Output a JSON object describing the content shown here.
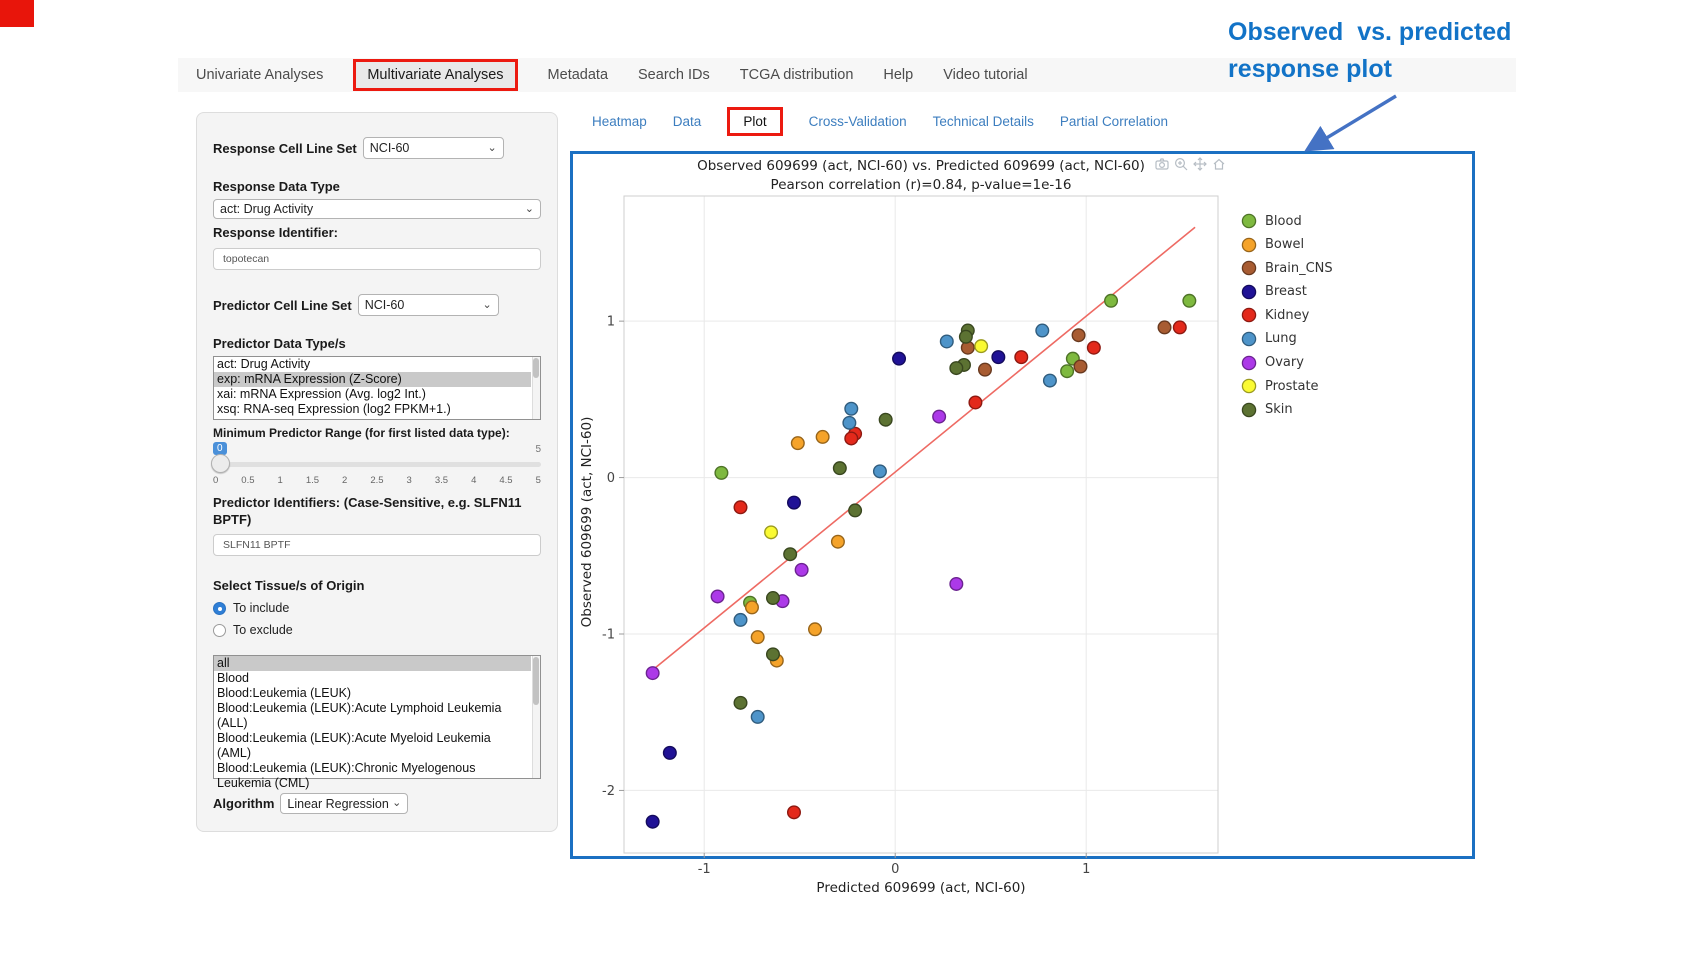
{
  "page": {
    "corner_accent_color": "#e8150b",
    "highlight_red": "#ec1a10",
    "panel_border_blue": "#1b70c2",
    "link_blue": "#3d7ebf"
  },
  "nav": {
    "items": [
      {
        "label": "Univariate Analyses",
        "active": false
      },
      {
        "label": "Multivariate Analyses",
        "active": true
      },
      {
        "label": "Metadata",
        "active": false
      },
      {
        "label": "Search IDs",
        "active": false
      },
      {
        "label": "TCGA distribution",
        "active": false
      },
      {
        "label": "Help",
        "active": false
      },
      {
        "label": "Video tutorial",
        "active": false
      }
    ]
  },
  "sidebar": {
    "response_cell_line_set": {
      "label": "Response Cell Line Set",
      "value": "NCI-60"
    },
    "response_data_type": {
      "label": "Response Data Type",
      "value": "act: Drug Activity"
    },
    "response_identifier": {
      "label": "Response Identifier:",
      "value": "topotecan"
    },
    "predictor_cell_line_set": {
      "label": "Predictor Cell Line Set",
      "value": "NCI-60"
    },
    "predictor_data_types": {
      "label": "Predictor Data Type/s",
      "options": [
        "act: Drug Activity",
        "exp: mRNA Expression (Z-Score)",
        "xai: mRNA Expression (Avg. log2 Int.)",
        "xsq: RNA-seq Expression (log2 FPKM+1.)"
      ],
      "selected": "exp: mRNA Expression (Z-Score)"
    },
    "min_predictor_range": {
      "label": "Minimum Predictor Range (for first listed data type):",
      "value": "0",
      "max_label": "5",
      "ticks": [
        "0",
        "0.5",
        "1",
        "1.5",
        "2",
        "2.5",
        "3",
        "3.5",
        "4",
        "4.5",
        "5"
      ]
    },
    "predictor_identifiers": {
      "label": "Predictor Identifiers: (Case-Sensitive, e.g. SLFN11 BPTF)",
      "value": "SLFN11 BPTF"
    },
    "tissue_origin": {
      "label": "Select Tissue/s of Origin",
      "radios": [
        {
          "label": "To include",
          "selected": true
        },
        {
          "label": "To exclude",
          "selected": false
        }
      ],
      "options": [
        "all",
        "Blood",
        "Blood:Leukemia (LEUK)",
        "Blood:Leukemia (LEUK):Acute Lymphoid Leukemia (ALL)",
        "Blood:Leukemia (LEUK):Acute Myeloid Leukemia (AML)",
        "Blood:Leukemia (LEUK):Chronic Myelogenous Leukemia (CML)"
      ],
      "selected": "all"
    },
    "algorithm": {
      "label": "Algorithm",
      "value": "Linear Regression"
    }
  },
  "plot_tabs": {
    "items": [
      {
        "label": "Heatmap",
        "active": false
      },
      {
        "label": "Data",
        "active": false
      },
      {
        "label": "Plot",
        "active": true
      },
      {
        "label": "Cross-Validation",
        "active": false
      },
      {
        "label": "Technical Details",
        "active": false
      },
      {
        "label": "Partial Correlation",
        "active": false
      }
    ]
  },
  "annotation": {
    "line1": "Observed  vs. predicted",
    "line2": "response plot",
    "color": "#1273c7"
  },
  "modebar": {
    "icons": [
      "camera-icon",
      "zoom-in-icon",
      "pan-icon",
      "reset-axes-icon"
    ]
  },
  "chart_data": {
    "type": "scatter",
    "title_line1": "Observed 609699 (act, NCI-60) vs. Predicted 609699 (act, NCI-60)",
    "title_line2": "Pearson correlation (r)=0.84, p-value=1e-16",
    "xlabel": "Predicted 609699 (act, NCI-60)",
    "ylabel": "Observed 609699 (act, NCI-60)",
    "xlim": [
      -1.42,
      1.69
    ],
    "ylim": [
      -2.4,
      1.8
    ],
    "xticks": [
      -1,
      0,
      1
    ],
    "yticks": [
      -2,
      -1,
      0,
      1
    ],
    "grid": true,
    "legend_position": "right",
    "regression_line": {
      "x1": -1.3,
      "y1": -1.26,
      "x2": 1.57,
      "y2": 1.6,
      "color": "#ee6a63"
    },
    "series": [
      {
        "name": "Blood",
        "color": "#7eb93f",
        "points": [
          [
            1.13,
            1.13
          ],
          [
            1.54,
            1.13
          ],
          [
            0.93,
            0.76
          ],
          [
            0.9,
            0.68
          ],
          [
            -0.91,
            0.03
          ],
          [
            -0.76,
            -0.8
          ]
        ]
      },
      {
        "name": "Bowel",
        "color": "#f5a32a",
        "points": [
          [
            -0.51,
            0.22
          ],
          [
            -0.38,
            0.26
          ],
          [
            -0.3,
            -0.41
          ],
          [
            -0.75,
            -0.83
          ],
          [
            -0.42,
            -0.97
          ],
          [
            -0.72,
            -1.02
          ],
          [
            -0.62,
            -1.17
          ]
        ]
      },
      {
        "name": "Brain_CNS",
        "color": "#a85c32",
        "points": [
          [
            0.38,
            0.83
          ],
          [
            0.47,
            0.69
          ],
          [
            0.96,
            0.91
          ],
          [
            0.97,
            0.71
          ],
          [
            1.41,
            0.96
          ]
        ]
      },
      {
        "name": "Breast",
        "color": "#201296",
        "points": [
          [
            0.54,
            0.77
          ],
          [
            0.02,
            0.76
          ],
          [
            -0.53,
            -0.16
          ],
          [
            -1.18,
            -1.76
          ],
          [
            -1.27,
            -2.2
          ]
        ]
      },
      {
        "name": "Kidney",
        "color": "#e3291b",
        "points": [
          [
            0.66,
            0.77
          ],
          [
            1.04,
            0.83
          ],
          [
            1.49,
            0.96
          ],
          [
            0.42,
            0.48
          ],
          [
            -0.21,
            0.28
          ],
          [
            -0.23,
            0.25
          ],
          [
            -0.81,
            -0.19
          ],
          [
            -0.53,
            -2.14
          ]
        ]
      },
      {
        "name": "Lung",
        "color": "#4e94c9",
        "points": [
          [
            0.27,
            0.87
          ],
          [
            0.77,
            0.94
          ],
          [
            0.81,
            0.62
          ],
          [
            -0.23,
            0.44
          ],
          [
            -0.24,
            0.35
          ],
          [
            -0.08,
            0.04
          ],
          [
            -0.81,
            -0.91
          ],
          [
            -0.72,
            -1.53
          ]
        ]
      },
      {
        "name": "Ovary",
        "color": "#ac39e8",
        "points": [
          [
            0.23,
            0.39
          ],
          [
            -0.49,
            -0.59
          ],
          [
            0.32,
            -0.68
          ],
          [
            -0.93,
            -0.76
          ],
          [
            -0.59,
            -0.79
          ],
          [
            -1.27,
            -1.25
          ]
        ]
      },
      {
        "name": "Prostate",
        "color": "#fafa33",
        "points": [
          [
            0.45,
            0.84
          ],
          [
            -0.65,
            -0.35
          ]
        ]
      },
      {
        "name": "Skin",
        "color": "#5c7232",
        "points": [
          [
            0.38,
            0.94
          ],
          [
            0.37,
            0.9
          ],
          [
            0.36,
            0.72
          ],
          [
            0.32,
            0.7
          ],
          [
            -0.05,
            0.37
          ],
          [
            -0.29,
            0.06
          ],
          [
            -0.21,
            -0.21
          ],
          [
            -0.55,
            -0.49
          ],
          [
            -0.64,
            -0.77
          ],
          [
            -0.64,
            -1.13
          ],
          [
            -0.81,
            -1.44
          ]
        ]
      }
    ]
  }
}
